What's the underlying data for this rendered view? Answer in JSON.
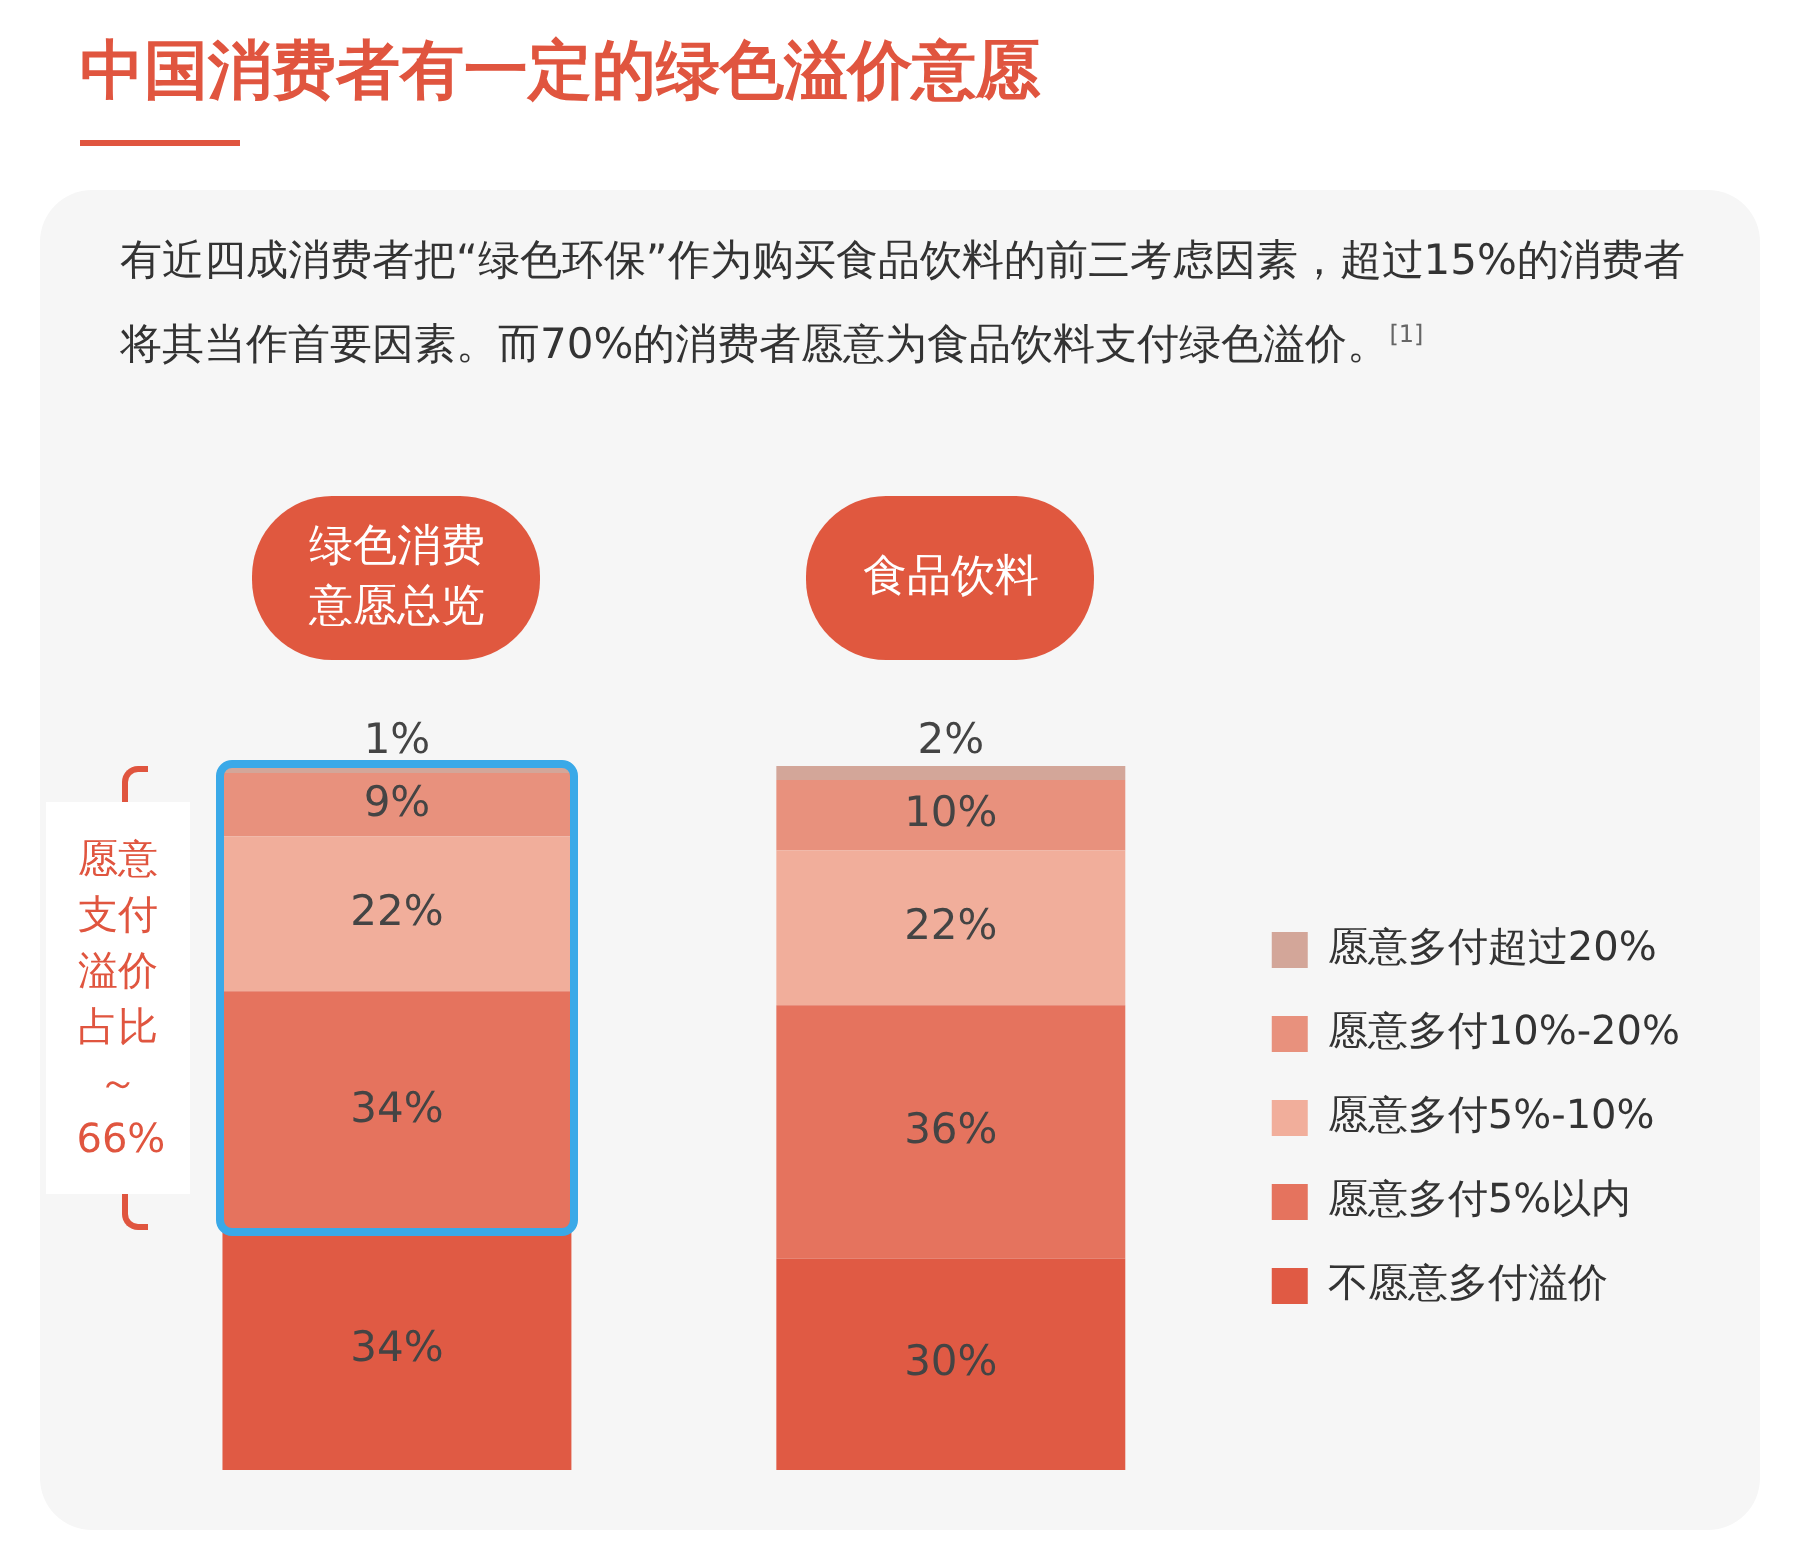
{
  "chart_data": {
    "type": "bar",
    "stacked": true,
    "title": "中国消费者有一定的绿色溢价意愿",
    "subtitle": "有近四成消费者把“绿色环保”作为购买食品饮料的前三考虑因素，超过15%的消费者将其当作首要因素。而70%的消费者愿意为食品饮料支付绿色溢价。$^{[1]}$",
    "categories": [
      "绿色消费意愿总览",
      "食品饮料"
    ],
    "series": [
      {
        "name": "不愿意多付溢价",
        "color": "#e05a44",
        "values": [
          34,
          30
        ],
        "value_labels": [
          "34%",
          "30%"
        ]
      },
      {
        "name": "愿意多付5%以内",
        "color": "#e5735e",
        "values": [
          34,
          36
        ],
        "value_labels": [
          "34%",
          "36%"
        ]
      },
      {
        "name": "愿意多付5%-10%",
        "color": "#f1ae9b",
        "values": [
          22,
          22
        ],
        "value_labels": [
          "22%",
          "22%"
        ]
      },
      {
        "name": "愿意多付10%-20%",
        "color": "#e8917d",
        "values": [
          9,
          10
        ],
        "value_labels": [
          "9%",
          "10%"
        ]
      },
      {
        "name": "愿意多付超过20%",
        "color": "#d3a699",
        "values": [
          1,
          2
        ],
        "value_labels": [
          "1%",
          "2%"
        ]
      }
    ],
    "legend": "right",
    "annotations": [
      "愿意支付溢价占比～66%"
    ]
  }
}
